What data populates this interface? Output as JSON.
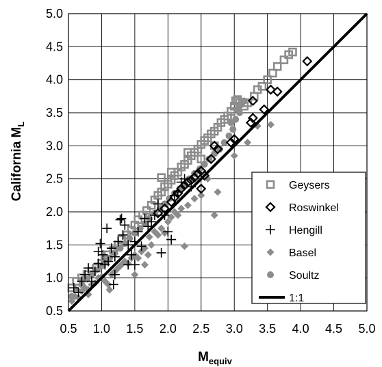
{
  "chart_data": {
    "type": "scatter",
    "title": "",
    "xlabel": "M",
    "xlabel_sub": "equiv",
    "ylabel": "California M",
    "ylabel_sub": "L",
    "xlim": [
      0.5,
      5.0
    ],
    "ylim": [
      0.5,
      5.0
    ],
    "x_ticks": [
      "0.5",
      "1.0",
      "1.5",
      "2.0",
      "2.5",
      "3.0",
      "3.5",
      "4.0",
      "4.5",
      "5.0"
    ],
    "y_ticks": [
      "0.5",
      "1.0",
      "1.5",
      "2.0",
      "2.5",
      "3.0",
      "3.5",
      "4.0",
      "4.5",
      "5.0"
    ],
    "grid": true,
    "legend_position": "right",
    "colors": {
      "gray": "#8c8c8c",
      "black": "#000000"
    },
    "series": [
      {
        "name": "Geysers",
        "marker": "open-square",
        "color": "#8c8c8c",
        "points": [
          [
            0.55,
            0.85
          ],
          [
            0.62,
            0.95
          ],
          [
            0.7,
            1.0
          ],
          [
            0.78,
            1.05
          ],
          [
            0.85,
            1.1
          ],
          [
            0.92,
            1.15
          ],
          [
            1.0,
            1.22
          ],
          [
            1.05,
            1.28
          ],
          [
            1.1,
            1.35
          ],
          [
            1.18,
            1.42
          ],
          [
            1.25,
            1.5
          ],
          [
            1.3,
            1.58
          ],
          [
            1.38,
            1.65
          ],
          [
            1.45,
            1.72
          ],
          [
            1.5,
            1.8
          ],
          [
            1.55,
            1.88
          ],
          [
            1.62,
            1.95
          ],
          [
            1.68,
            2.02
          ],
          [
            1.75,
            2.1
          ],
          [
            1.8,
            2.18
          ],
          [
            1.85,
            2.25
          ],
          [
            1.9,
            2.3
          ],
          [
            1.95,
            2.38
          ],
          [
            2.0,
            2.42
          ],
          [
            2.05,
            2.48
          ],
          [
            2.1,
            2.55
          ],
          [
            2.15,
            2.6
          ],
          [
            2.2,
            2.68
          ],
          [
            2.25,
            2.72
          ],
          [
            2.3,
            2.78
          ],
          [
            2.35,
            2.85
          ],
          [
            2.4,
            2.9
          ],
          [
            2.45,
            2.95
          ],
          [
            2.5,
            3.02
          ],
          [
            2.55,
            3.08
          ],
          [
            2.6,
            3.12
          ],
          [
            2.65,
            3.18
          ],
          [
            2.7,
            3.22
          ],
          [
            2.75,
            3.28
          ],
          [
            2.8,
            3.35
          ],
          [
            2.85,
            3.4
          ],
          [
            2.9,
            3.45
          ],
          [
            2.95,
            3.52
          ],
          [
            3.0,
            3.6
          ],
          [
            3.02,
            3.68
          ],
          [
            3.05,
            3.7
          ],
          [
            3.08,
            3.65
          ],
          [
            3.15,
            3.6
          ],
          [
            3.2,
            3.65
          ],
          [
            3.3,
            3.75
          ],
          [
            3.35,
            3.85
          ],
          [
            3.42,
            3.9
          ],
          [
            3.5,
            4.0
          ],
          [
            3.58,
            4.1
          ],
          [
            3.65,
            4.2
          ],
          [
            3.75,
            4.3
          ],
          [
            3.82,
            4.38
          ],
          [
            3.88,
            4.42
          ],
          [
            1.9,
            2.52
          ],
          [
            2.05,
            2.6
          ],
          [
            2.3,
            2.9
          ],
          [
            2.5,
            2.8
          ],
          [
            2.7,
            3.0
          ]
        ]
      },
      {
        "name": "Roswinkel",
        "marker": "open-diamond",
        "color": "#000000",
        "points": [
          [
            1.85,
            1.98
          ],
          [
            1.95,
            2.05
          ],
          [
            2.05,
            2.15
          ],
          [
            2.1,
            2.22
          ],
          [
            2.15,
            2.28
          ],
          [
            2.2,
            2.35
          ],
          [
            2.25,
            2.4
          ],
          [
            2.3,
            2.45
          ],
          [
            2.35,
            2.48
          ],
          [
            2.4,
            2.52
          ],
          [
            2.45,
            2.58
          ],
          [
            2.5,
            2.62
          ],
          [
            2.55,
            2.55
          ],
          [
            2.5,
            2.35
          ],
          [
            2.65,
            2.8
          ],
          [
            2.7,
            3.0
          ],
          [
            2.75,
            2.95
          ],
          [
            2.95,
            3.05
          ],
          [
            3.0,
            3.1
          ],
          [
            3.25,
            3.35
          ],
          [
            3.28,
            3.42
          ],
          [
            3.28,
            3.68
          ],
          [
            3.45,
            3.55
          ],
          [
            3.55,
            3.85
          ],
          [
            3.65,
            3.82
          ],
          [
            4.1,
            4.28
          ]
        ]
      },
      {
        "name": "Hengill",
        "marker": "plus",
        "color": "#000000",
        "points": [
          [
            0.58,
            0.85
          ],
          [
            0.65,
            0.78
          ],
          [
            0.7,
            0.95
          ],
          [
            0.75,
            1.05
          ],
          [
            0.8,
            1.15
          ],
          [
            0.85,
            0.95
          ],
          [
            0.9,
            1.1
          ],
          [
            0.95,
            1.22
          ],
          [
            0.98,
            1.52
          ],
          [
            1.02,
            1.35
          ],
          [
            1.05,
            1.2
          ],
          [
            1.08,
            1.75
          ],
          [
            1.1,
            1.25
          ],
          [
            1.15,
            1.45
          ],
          [
            1.18,
            0.9
          ],
          [
            1.2,
            1.32
          ],
          [
            1.25,
            1.55
          ],
          [
            1.28,
            1.88
          ],
          [
            1.3,
            1.9
          ],
          [
            1.32,
            1.65
          ],
          [
            1.35,
            1.8
          ],
          [
            1.4,
            1.5
          ],
          [
            1.45,
            1.35
          ],
          [
            1.5,
            1.55
          ],
          [
            1.5,
            1.2
          ],
          [
            1.55,
            1.7
          ],
          [
            1.6,
            1.48
          ],
          [
            1.65,
            1.9
          ],
          [
            1.7,
            1.78
          ],
          [
            1.75,
            1.85
          ],
          [
            1.8,
            1.95
          ],
          [
            1.85,
            2.12
          ],
          [
            1.9,
            1.38
          ],
          [
            1.95,
            1.95
          ],
          [
            2.0,
            1.7
          ],
          [
            2.05,
            1.58
          ],
          [
            2.1,
            2.25
          ],
          [
            2.15,
            2.3
          ],
          [
            2.2,
            2.45
          ],
          [
            2.25,
            2.5
          ],
          [
            2.35,
            2.38
          ],
          [
            1.2,
            1.05
          ],
          [
            1.4,
            1.2
          ],
          [
            0.95,
            1.4
          ]
        ]
      },
      {
        "name": "Basel",
        "marker": "filled-diamond",
        "color": "#8c8c8c",
        "points": [
          [
            0.55,
            0.65
          ],
          [
            0.6,
            0.72
          ],
          [
            0.65,
            0.7
          ],
          [
            0.7,
            0.8
          ],
          [
            0.75,
            0.85
          ],
          [
            0.8,
            0.82
          ],
          [
            0.85,
            0.9
          ],
          [
            0.9,
            0.92
          ],
          [
            0.95,
            1.0
          ],
          [
            1.0,
            1.02
          ],
          [
            1.05,
            0.95
          ],
          [
            1.1,
            0.9
          ],
          [
            1.12,
            0.82
          ],
          [
            1.15,
            1.05
          ],
          [
            1.2,
            1.1
          ],
          [
            1.25,
            1.15
          ],
          [
            1.3,
            1.2
          ],
          [
            1.35,
            1.25
          ],
          [
            1.4,
            1.22
          ],
          [
            1.45,
            1.3
          ],
          [
            1.5,
            1.35
          ],
          [
            1.55,
            1.3
          ],
          [
            1.6,
            1.4
          ],
          [
            1.65,
            1.45
          ],
          [
            1.7,
            1.35
          ],
          [
            1.72,
            1.62
          ],
          [
            1.75,
            1.5
          ],
          [
            1.8,
            1.7
          ],
          [
            1.85,
            1.65
          ],
          [
            1.9,
            1.75
          ],
          [
            1.95,
            1.68
          ],
          [
            2.0,
            1.85
          ],
          [
            2.05,
            1.92
          ],
          [
            2.1,
            2.0
          ],
          [
            2.15,
            1.95
          ],
          [
            2.2,
            2.05
          ],
          [
            2.25,
            1.48
          ],
          [
            2.3,
            2.1
          ],
          [
            2.4,
            2.2
          ],
          [
            2.5,
            2.25
          ],
          [
            2.6,
            2.5
          ],
          [
            2.7,
            1.95
          ],
          [
            2.75,
            2.3
          ],
          [
            3.0,
            2.85
          ],
          [
            3.2,
            3.05
          ],
          [
            3.35,
            3.3
          ],
          [
            3.55,
            3.32
          ],
          [
            1.5,
            1.05
          ],
          [
            1.65,
            1.2
          ],
          [
            0.8,
            0.75
          ],
          [
            0.72,
            0.98
          ]
        ]
      },
      {
        "name": "Soultz",
        "marker": "filled-circle",
        "color": "#8c8c8c",
        "points": [
          [
            0.55,
            0.72
          ],
          [
            0.62,
            0.82
          ],
          [
            0.7,
            0.9
          ],
          [
            0.78,
            0.98
          ],
          [
            0.85,
            1.05
          ],
          [
            0.92,
            1.12
          ],
          [
            1.0,
            1.18
          ],
          [
            1.05,
            1.25
          ],
          [
            1.12,
            1.3
          ],
          [
            1.2,
            1.38
          ],
          [
            1.28,
            1.45
          ],
          [
            1.35,
            1.52
          ],
          [
            1.42,
            1.6
          ],
          [
            1.5,
            1.68
          ],
          [
            1.58,
            1.75
          ],
          [
            1.65,
            1.82
          ],
          [
            1.72,
            1.9
          ],
          [
            1.8,
            1.98
          ],
          [
            1.88,
            2.05
          ],
          [
            1.95,
            2.12
          ],
          [
            2.02,
            2.2
          ],
          [
            2.1,
            2.28
          ],
          [
            2.18,
            2.35
          ],
          [
            2.25,
            2.42
          ],
          [
            2.32,
            2.5
          ],
          [
            2.4,
            2.58
          ],
          [
            2.48,
            2.65
          ],
          [
            2.55,
            2.72
          ],
          [
            2.62,
            2.8
          ],
          [
            2.7,
            2.88
          ],
          [
            2.78,
            2.95
          ],
          [
            2.85,
            3.05
          ],
          [
            2.92,
            3.15
          ],
          [
            2.98,
            3.25
          ],
          [
            3.02,
            3.4
          ],
          [
            3.05,
            3.55
          ],
          [
            3.1,
            3.62
          ],
          [
            3.15,
            3.68
          ],
          [
            2.95,
            3.35
          ],
          [
            3.08,
            3.5
          ]
        ]
      },
      {
        "name": "1:1",
        "marker": "line",
        "color": "#000000",
        "points": [
          [
            0.5,
            0.5
          ],
          [
            5.0,
            5.0
          ]
        ]
      }
    ]
  }
}
